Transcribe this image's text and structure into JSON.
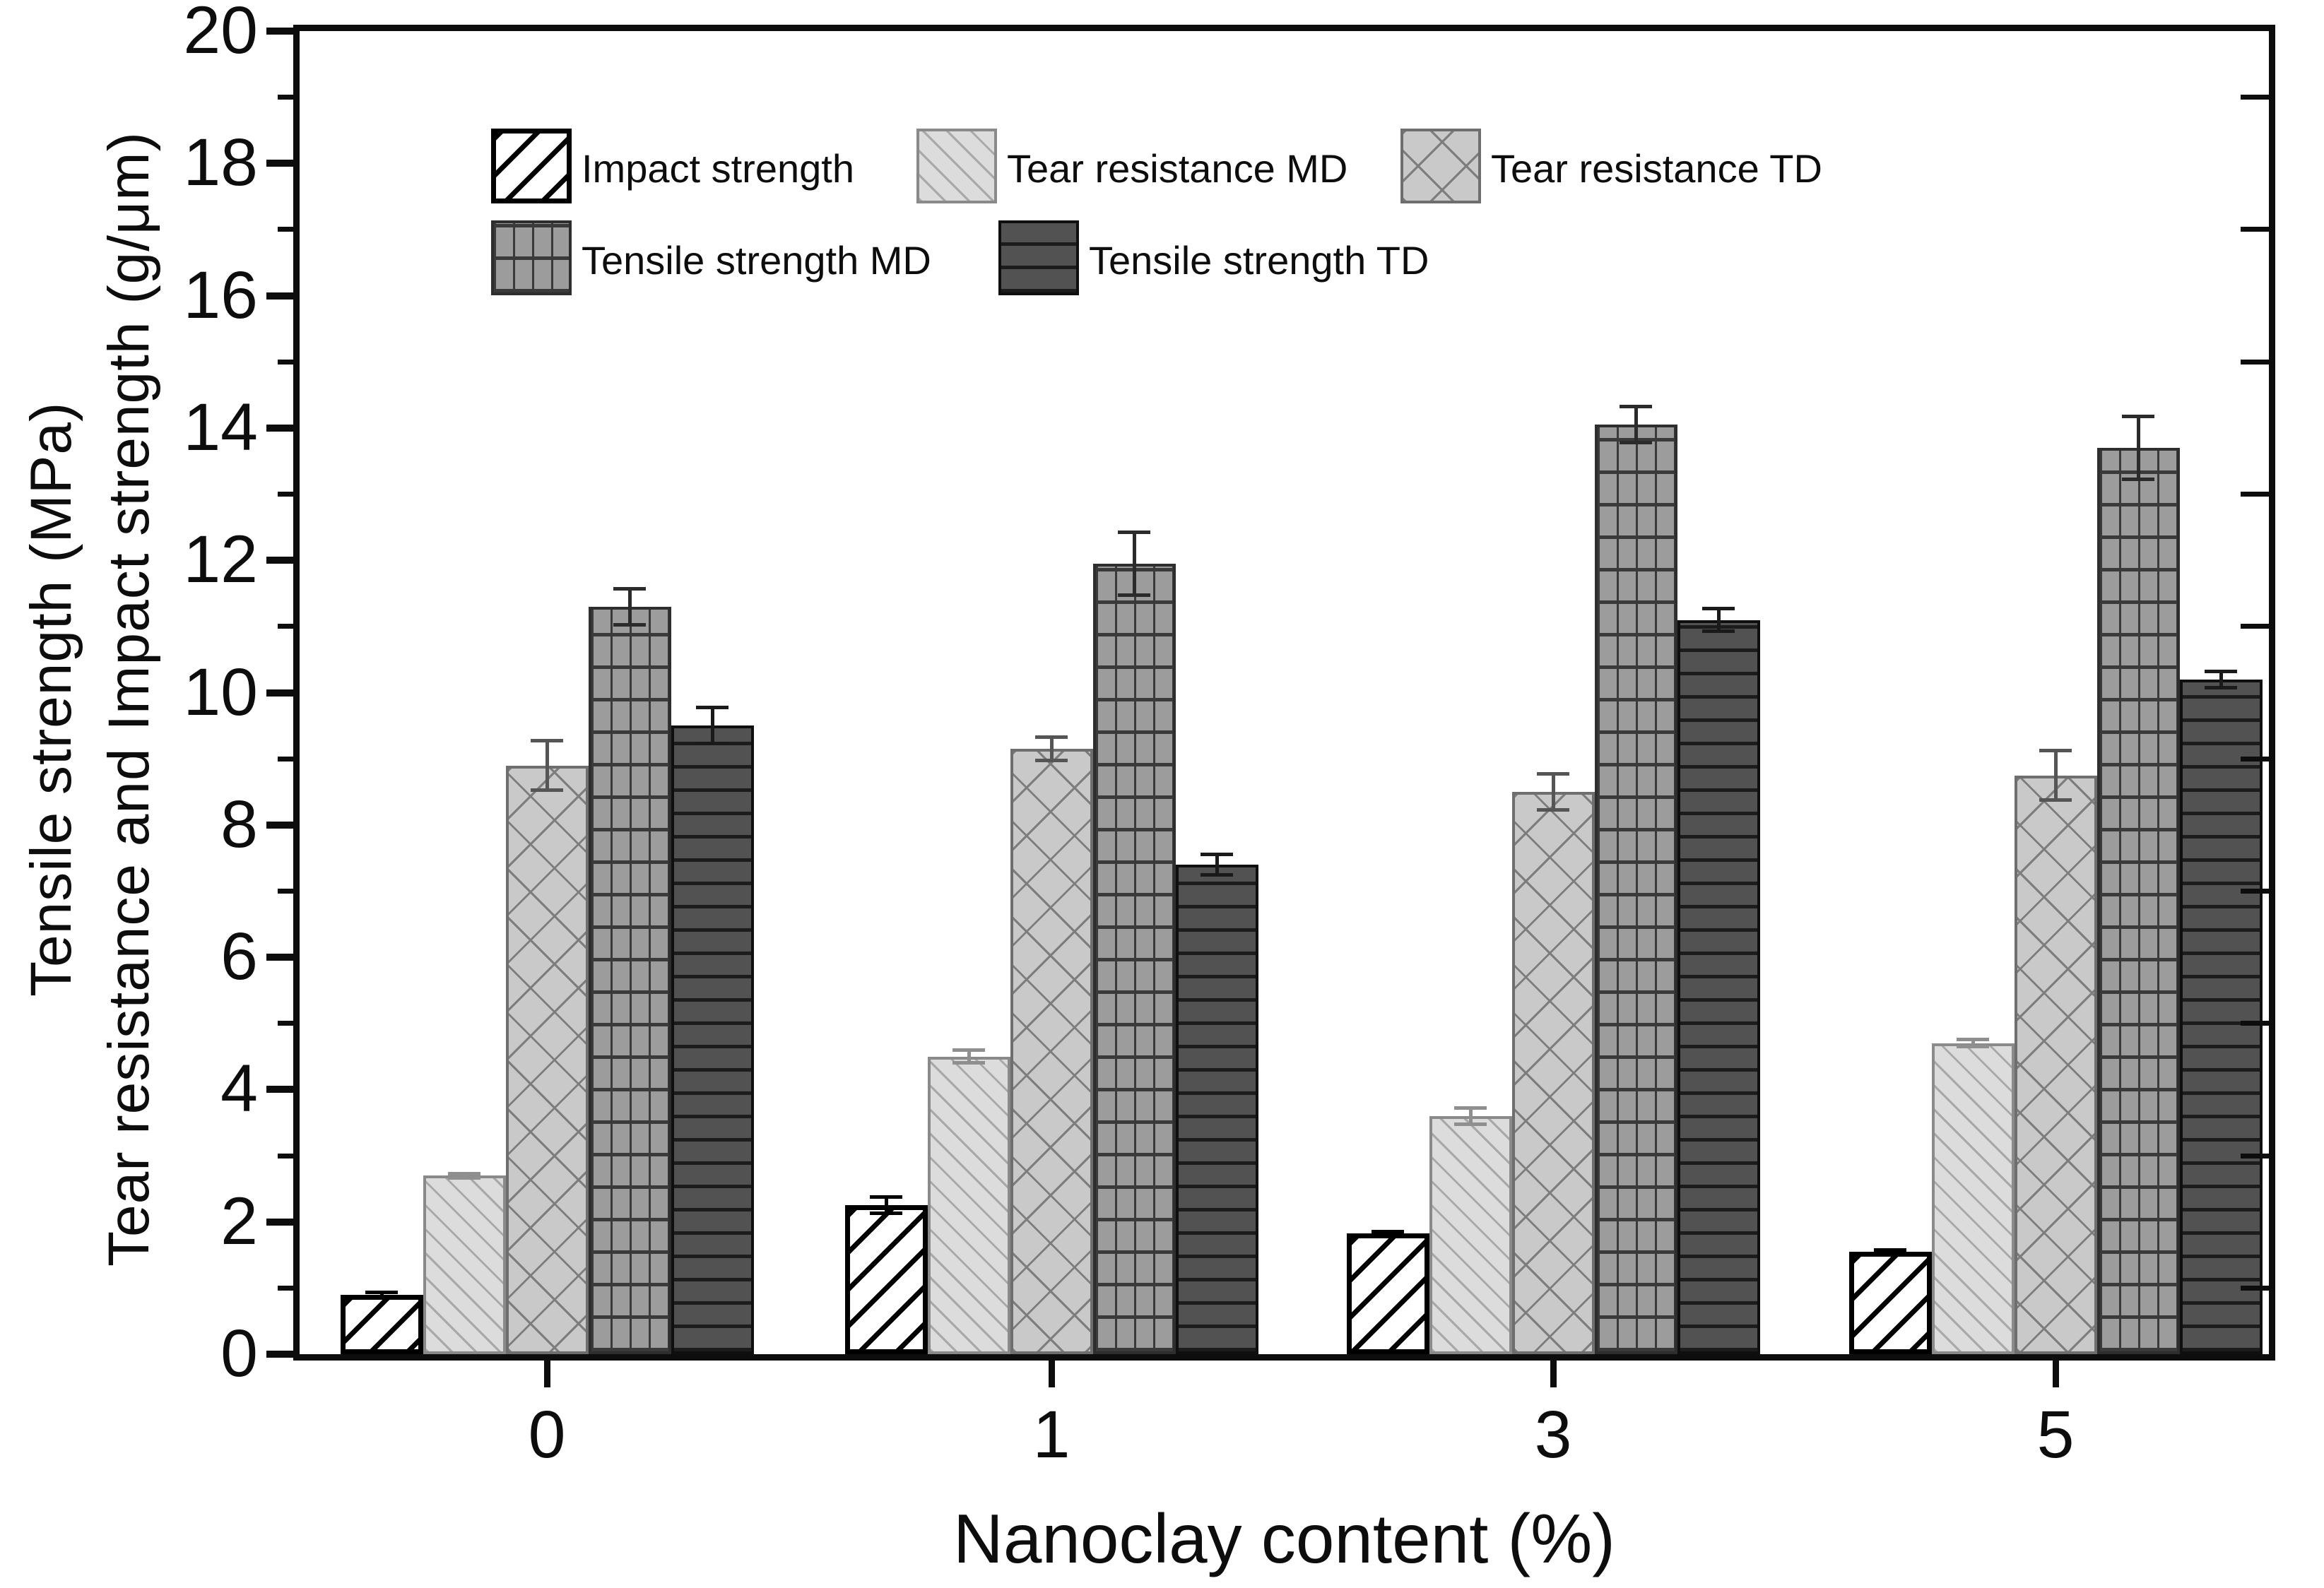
{
  "chart_data": {
    "type": "bar",
    "title": "",
    "xlabel": "Nanoclay content (%)",
    "ylabel_line1": "Tensile strength (MPa)",
    "ylabel_line2": "Tear resistance and Impact strength (g/μm)",
    "categories": [
      "0",
      "1",
      "3",
      "5"
    ],
    "ylim": [
      0,
      20
    ],
    "ytick_step": 2,
    "ytick_labels": [
      "0",
      "2",
      "4",
      "6",
      "8",
      "10",
      "12",
      "14",
      "16",
      "18",
      "20"
    ],
    "minor_ticks_at_odd_values": true,
    "grid": false,
    "legend_position": "top-left-inside",
    "frame": true,
    "axis_color": "#0d0d0d",
    "background_color": "#ffffff",
    "series": [
      {
        "name": "Impact strength",
        "pattern": "back-diagonal",
        "fill": "#ffffff",
        "line": "#000000",
        "border": "#000000",
        "error_color": "#000000",
        "values": [
          0.9,
          2.25,
          1.83,
          1.55
        ],
        "errors": [
          0.06,
          0.15,
          0.05,
          0.05
        ]
      },
      {
        "name": "Tear resistance MD",
        "pattern": "fwd-diagonal",
        "fill": "#dcdcdc",
        "line": "#a8a8a8",
        "border": "#8a8a8a",
        "error_color": "#8f8f8f",
        "values": [
          2.7,
          4.5,
          3.6,
          4.7
        ],
        "errors": [
          0.06,
          0.12,
          0.15,
          0.08
        ]
      },
      {
        "name": "Tear resistance TD",
        "pattern": "crosshatch",
        "fill": "#c9c9c9",
        "line": "#7d7d7d",
        "border": "#6e6e6e",
        "error_color": "#555555",
        "values": [
          8.9,
          9.15,
          8.5,
          8.75
        ],
        "errors": [
          0.4,
          0.2,
          0.3,
          0.4
        ]
      },
      {
        "name": "Tensile strength MD",
        "pattern": "grid",
        "fill": "#9c9c9c",
        "line": "#3a3a3a",
        "border": "#2e2e2e",
        "error_color": "#2b2b2b",
        "values": [
          11.3,
          11.95,
          14.05,
          13.7
        ],
        "errors": [
          0.3,
          0.5,
          0.3,
          0.5
        ]
      },
      {
        "name": "Tensile strength TD",
        "pattern": "horizontal",
        "fill": "#525252",
        "line": "#1c1c1c",
        "border": "#0f0f0f",
        "error_color": "#1a1a1a",
        "values": [
          9.5,
          7.4,
          11.1,
          10.2
        ],
        "errors": [
          0.3,
          0.18,
          0.2,
          0.15
        ]
      }
    ]
  }
}
